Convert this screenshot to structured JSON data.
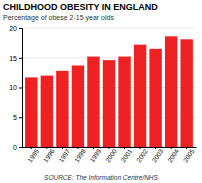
{
  "chart_data": {
    "type": "bar",
    "title": "CHILDHOOD OBESITY IN ENGLAND",
    "subtitle": "Percentage of obese 2-15 year olds",
    "annotations": [
      "SOURCE: The Information Centre/NHS"
    ],
    "categories": [
      "1995",
      "1996",
      "1997",
      "1998",
      "1999",
      "2000",
      "2001",
      "2002",
      "2003",
      "2004",
      "2005"
    ],
    "values": [
      11.7,
      12.0,
      12.8,
      13.7,
      15.2,
      14.6,
      15.2,
      17.2,
      16.5,
      18.6,
      18.1
    ],
    "color": "#ee2222",
    "ylim": [
      0,
      20
    ],
    "yticks": [
      0,
      5,
      10,
      15,
      20
    ],
    "grid": true
  }
}
